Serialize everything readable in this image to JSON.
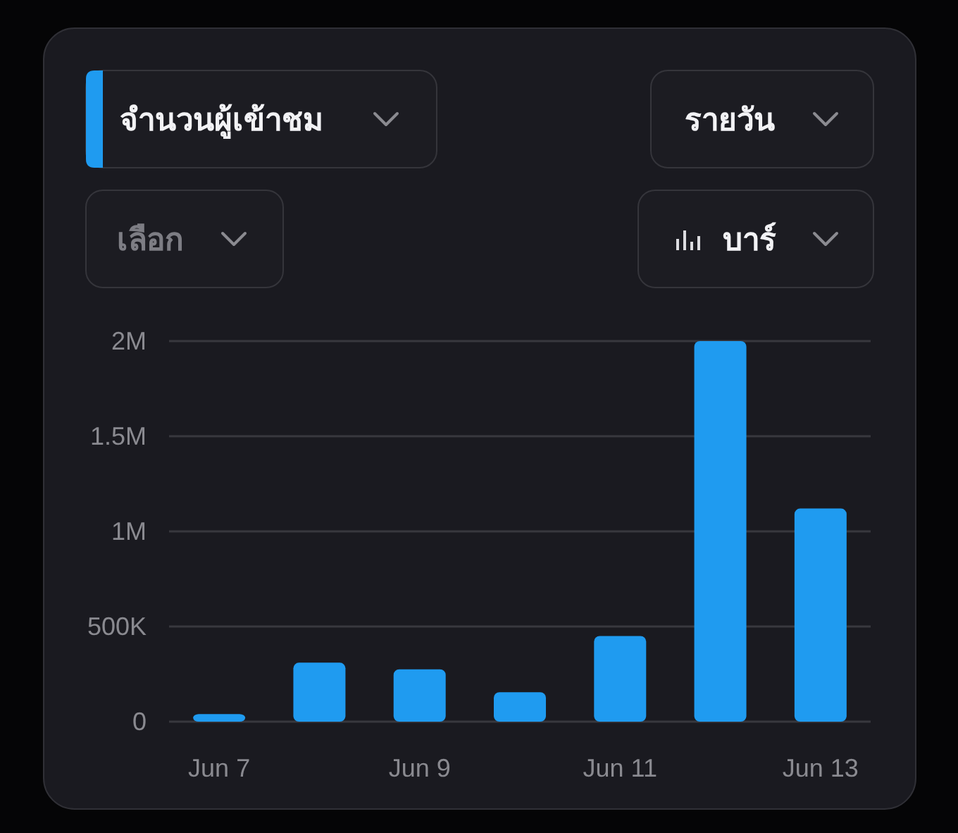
{
  "chart_data": {
    "type": "bar",
    "title": "จำนวนผู้เข้าชม",
    "annotations": [
      "รายวัน",
      "เลือก",
      "บาร์"
    ],
    "categories": [
      "Jun 7",
      null,
      "Jun 9",
      null,
      "Jun 11",
      null,
      "Jun 13"
    ],
    "values": [
      40000,
      310000,
      275000,
      155000,
      450000,
      2000000,
      1120000
    ],
    "color": "#1f9bf0",
    "ylim": [
      0,
      2000000
    ],
    "yticks": [
      0,
      {
        "value": 500000,
        "label": "500K"
      },
      {
        "value": 1000000,
        "label": "1M"
      },
      {
        "value": 1500000,
        "label": "1.5M"
      },
      {
        "value": 2000000,
        "label": "2M"
      }
    ],
    "grid": "y"
  }
}
